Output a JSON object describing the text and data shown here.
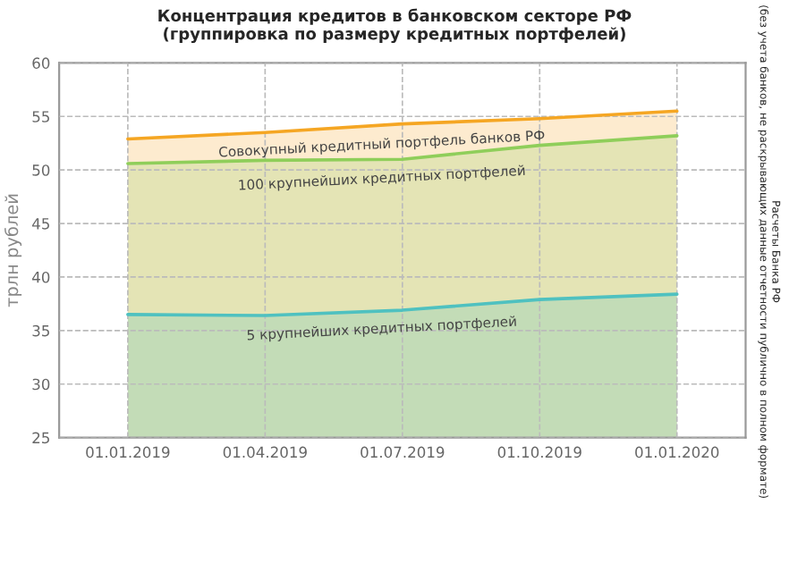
{
  "chart_data": {
    "type": "area",
    "title": "Концентрация кредитов в банковском секторе РФ\n(группировка по размеру кредитных портфелей)",
    "ylabel": "трлн рублей",
    "categories": [
      "01.01.2019",
      "01.04.2019",
      "01.07.2019",
      "01.10.2019",
      "01.01.2020"
    ],
    "series": [
      {
        "name": "Совокупный кредитный портфель банков РФ",
        "color": "#f5a623",
        "values": [
          52.9,
          53.5,
          54.3,
          54.8,
          55.5
        ]
      },
      {
        "name": "100 крупнейших кредитных портфелей",
        "color": "#8fce5a",
        "values": [
          50.6,
          50.9,
          51.0,
          52.3,
          53.2
        ]
      },
      {
        "name": "5 крупнейших кредитных портфелей",
        "color": "#4fc1c0",
        "values": [
          36.5,
          36.4,
          36.9,
          37.9,
          38.4
        ]
      }
    ],
    "ylim": [
      25,
      60
    ],
    "yticks": [
      25,
      30,
      35,
      40,
      45,
      50,
      55,
      60
    ],
    "grid": true,
    "line_style": "solid",
    "legend": false,
    "annotations": [
      "Расчеты Банка РФ\n(без учета банков, не раскрывающих данные отчетности публично в полном формате)"
    ]
  }
}
